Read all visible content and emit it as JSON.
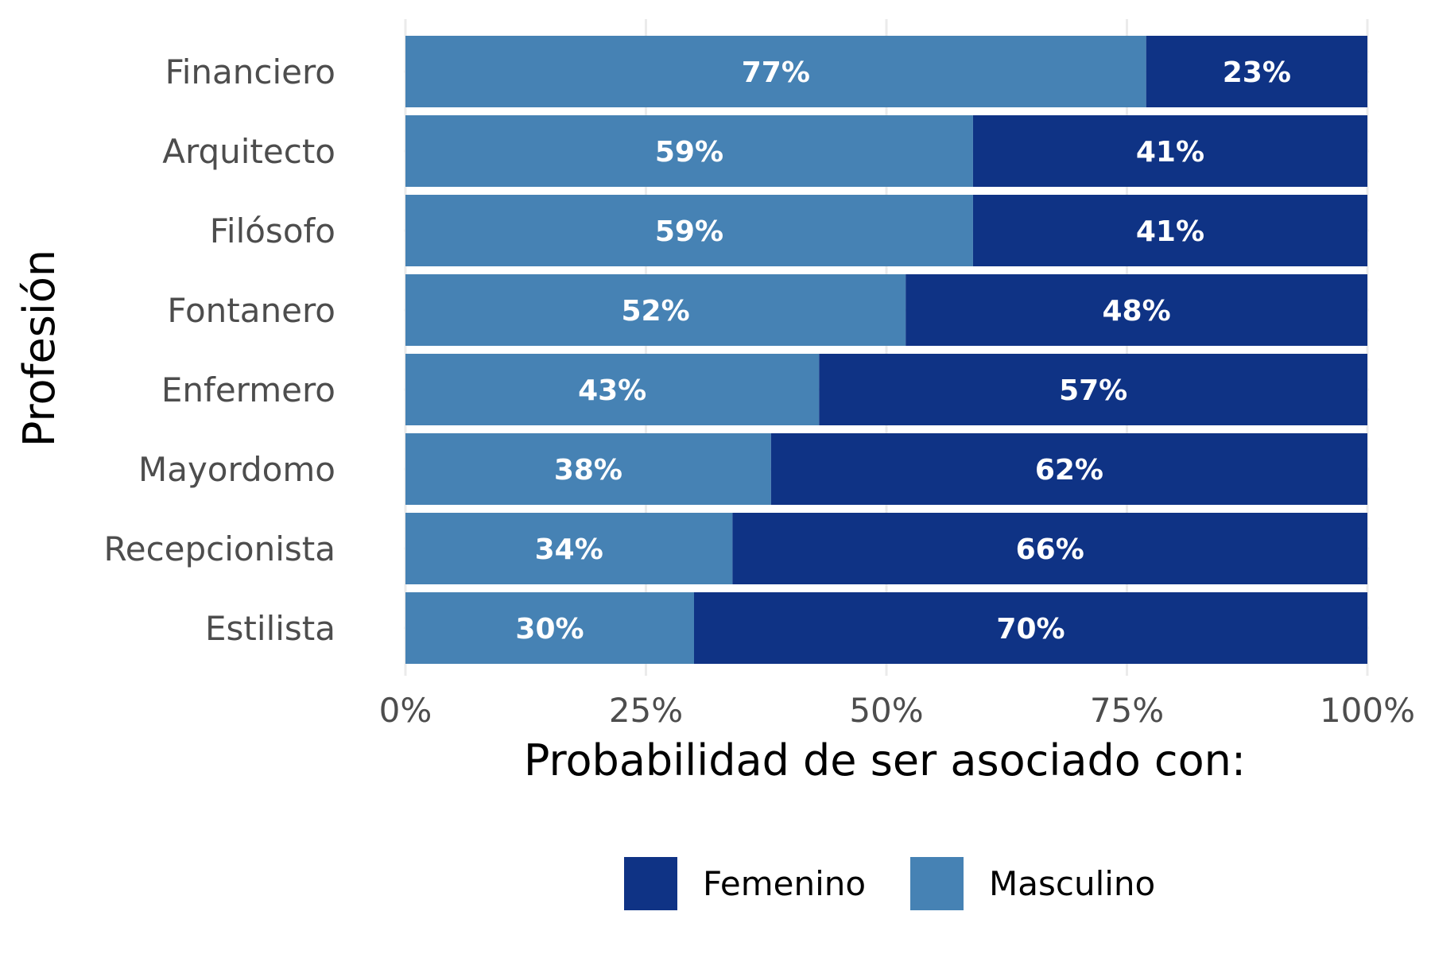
{
  "chart_data": {
    "type": "bar",
    "orientation": "horizontal",
    "stacked": true,
    "categories": [
      "Financiero",
      "Arquitecto",
      "Filósofo",
      "Fontanero",
      "Enfermero",
      "Mayordomo",
      "Recepcionista",
      "Estilista"
    ],
    "series": [
      {
        "name": "Masculino",
        "values": [
          0.77,
          0.59,
          0.59,
          0.52,
          0.43,
          0.38,
          0.34,
          0.3
        ],
        "labels": [
          "77%",
          "59%",
          "59%",
          "52%",
          "43%",
          "38%",
          "34%",
          "30%"
        ],
        "color": "#4682b4"
      },
      {
        "name": "Femenino",
        "values": [
          0.23,
          0.41,
          0.41,
          0.48,
          0.57,
          0.62,
          0.66,
          0.7
        ],
        "labels": [
          "23%",
          "41%",
          "41%",
          "48%",
          "57%",
          "62%",
          "66%",
          "70%"
        ],
        "color": "#0f3385"
      }
    ],
    "xlabel": "Probabilidad de ser asociado con:",
    "ylabel": "Profesión",
    "xlim": [
      0,
      1
    ],
    "x_ticks": [
      0,
      0.25,
      0.5,
      0.75,
      1
    ],
    "x_tick_labels": [
      "0%",
      "25%",
      "50%",
      "75%",
      "100%"
    ],
    "grid": true,
    "legend": {
      "position": "bottom",
      "order": [
        "Femenino",
        "Masculino"
      ]
    }
  }
}
